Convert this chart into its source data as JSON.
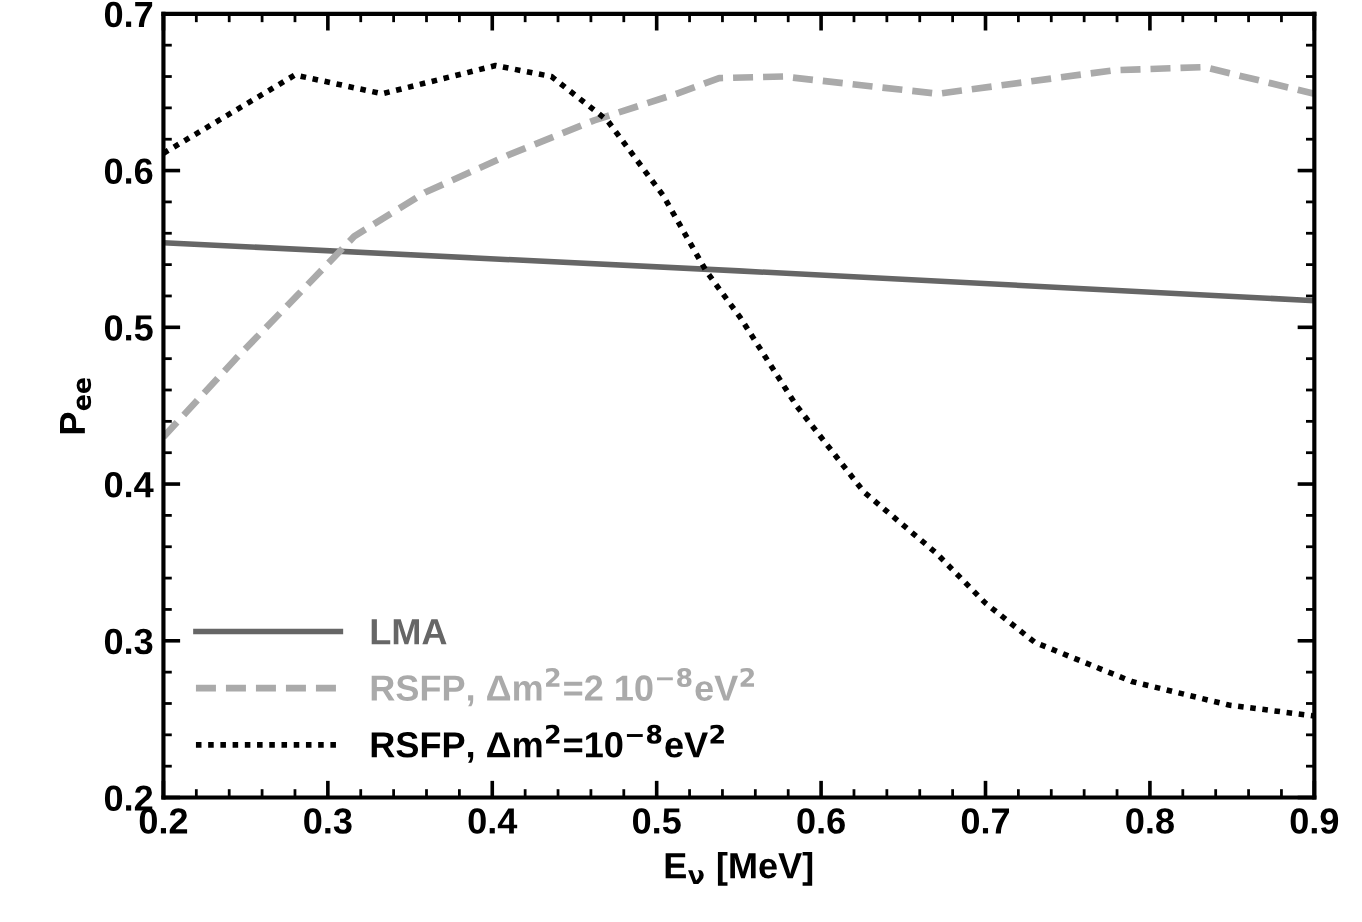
{
  "chart_data": {
    "type": "line",
    "xlabel": "E$_{ν}$ [MeV]",
    "ylabel": "P$_{ee}$",
    "xlim": [
      0.2,
      0.9
    ],
    "ylim": [
      0.2,
      0.7
    ],
    "xticks": [
      0.2,
      0.3,
      0.4,
      0.5,
      0.6,
      0.7,
      0.8,
      0.9
    ],
    "yticks": [
      0.2,
      0.3,
      0.4,
      0.5,
      0.6,
      0.7
    ],
    "grid": false,
    "legend": "bottom left",
    "marker": "none",
    "series": [
      {
        "name": "LMA",
        "color": "#666666",
        "line_style": "solid",
        "x": [
          0.2,
          0.55,
          0.9
        ],
        "values": [
          0.554,
          0.536,
          0.517
        ]
      },
      {
        "name": "RSFP, Δm$^{2}$=2 10$^{−8}$eV$^{2}$",
        "color": "#aaaaaa",
        "line_style": "dashed",
        "x": [
          0.2,
          0.244,
          0.282,
          0.316,
          0.359,
          0.41,
          0.462,
          0.512,
          0.538,
          0.577,
          0.671,
          0.778,
          0.833,
          0.9
        ],
        "values": [
          0.43,
          0.48,
          0.521,
          0.558,
          0.586,
          0.61,
          0.632,
          0.649,
          0.659,
          0.66,
          0.649,
          0.664,
          0.666,
          0.649
        ]
      },
      {
        "name": "RSFP, Δm$^{2}$=10$^{−8}$eV$^{2}$",
        "color": "#000000",
        "line_style": "dotted",
        "x": [
          0.2,
          0.28,
          0.333,
          0.402,
          0.436,
          0.47,
          0.504,
          0.53,
          0.551,
          0.585,
          0.626,
          0.67,
          0.7,
          0.73,
          0.789,
          0.848,
          0.9
        ],
        "values": [
          0.611,
          0.661,
          0.649,
          0.667,
          0.66,
          0.632,
          0.584,
          0.536,
          0.506,
          0.45,
          0.395,
          0.356,
          0.324,
          0.299,
          0.274,
          0.259,
          0.252
        ]
      }
    ]
  }
}
